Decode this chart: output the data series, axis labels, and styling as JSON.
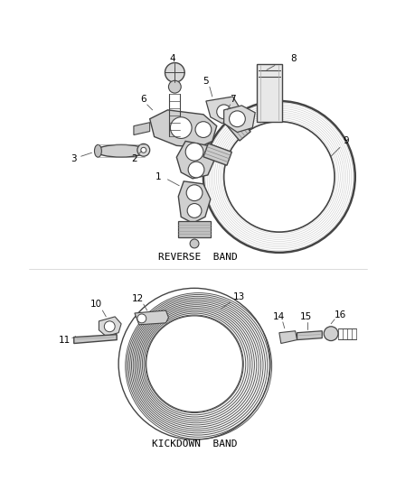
{
  "background_color": "#ffffff",
  "line_color": "#444444",
  "text_color": "#000000",
  "reverse_band_label": "REVERSE  BAND",
  "kickdown_band_label": "KICKDOWN  BAND",
  "figsize": [
    4.38,
    5.33
  ],
  "dpi": 100
}
